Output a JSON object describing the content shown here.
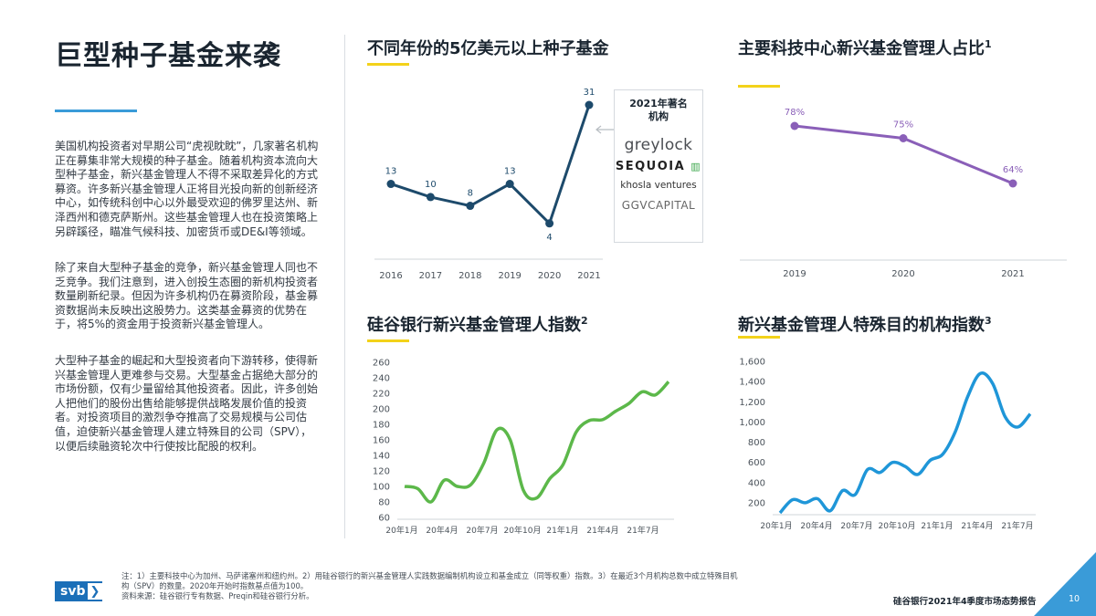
{
  "page": {
    "title": "巨型种子基金来袭",
    "paragraphs": [
      "美国机构投资者对早期公司“虎视眈眈”，几家著名机构正在募集非常大规模的种子基金。随着机构资本流向大型种子基金，新兴基金管理人不得不采取差异化的方式募资。许多新兴基金管理人正将目光投向新的创新经济中心，如传统科创中心以外最受欢迎的佛罗里达州、新泽西州和德克萨斯州。这些基金管理人也在投资策略上另辟蹊径，瞄准气候科技、加密货币或DE&I等领域。",
      "除了来自大型种子基金的竞争，新兴基金管理人同也不乏竞争。我们注意到，进入创投生态圈的新机构投资者数量刷新纪录。但因为许多机构仍在募资阶段，基金募资数据尚未反映出这股势力。这类基金募资的优势在于，将5%的资金用于投资新兴基金管理人。",
      "大型种子基金的崛起和大型投资者向下游转移，使得新兴基金管理人更难参与交易。大型基金占据绝大部分的市场份额，仅有少量留给其他投资者。因此，许多创始人把他们的股份出售给能够提供战略发展价值的投资者。对投资项目的激烈争夺推高了交易规模与公司估值，迫使新兴基金管理人建立特殊目的公司（SPV），以便后续融资轮次中行使按比配股的权利。"
    ],
    "footer": {
      "notes_line1": "注：1）主要科技中心为加州、马萨诸塞州和纽约州。2）用硅谷银行的新兴基金管理人实践数据编制机构设立和基金成立（同等权重）指数。3）在最近3个月机构总数中成立特殊目机",
      "notes_line2": "构（SPV）的数量。2020年开始时指数基点值为100。",
      "source": "资料来源：硅谷银行专有数据、Preqin和硅谷银行分析。",
      "report": "硅谷银行2021年4季度市场态势报告",
      "page_number": "10",
      "logo_text": "svb",
      "logo_chevron": "❯"
    },
    "colors": {
      "accent_blue": "#3a9bd8",
      "accent_yellow": "#f3d21a",
      "navy": "#1d4a6b",
      "purple": "#8a5fb8",
      "green": "#5cb84a",
      "sky": "#1f96d8"
    }
  },
  "legend": {
    "header_line1": "2021年著名",
    "header_line2": "机构",
    "firms": [
      "greylock",
      "SEQUOIA",
      "khosla ventures",
      "GGVCAPITAL"
    ]
  },
  "chart_data": [
    {
      "type": "line",
      "title": "不同年份的5亿美元以上种子基金",
      "categories": [
        "2016",
        "2017",
        "2018",
        "2019",
        "2020",
        "2021"
      ],
      "values": [
        13,
        10,
        8,
        13,
        4,
        31
      ]
    },
    {
      "type": "line",
      "title": "主要科技中心新兴基金管理人占比",
      "title_sup": "1",
      "categories": [
        "2019",
        "2020",
        "2021"
      ],
      "values": [
        78,
        75,
        64
      ],
      "value_labels": [
        "78%",
        "75%",
        "64%"
      ]
    },
    {
      "type": "line",
      "title": "硅谷银行新兴基金管理人指数",
      "title_sup": "2",
      "x_ticks": [
        "20年1月",
        "20年4月",
        "20年7月",
        "20年10月",
        "21年1月",
        "21年4月",
        "21年7月"
      ],
      "y_ticks": [
        "60",
        "80",
        "100",
        "120",
        "140",
        "160",
        "180",
        "200",
        "220",
        "240",
        "260"
      ],
      "ylim": [
        60,
        260
      ],
      "values": [
        100,
        97,
        80,
        108,
        100,
        102,
        130,
        173,
        160,
        95,
        85,
        110,
        128,
        170,
        185,
        186,
        197,
        207,
        222,
        218,
        235
      ]
    },
    {
      "type": "line",
      "title": "新兴基金管理人特殊目的机构指数",
      "title_sup": "3",
      "x_ticks": [
        "20年1月",
        "20年4月",
        "20年7月",
        "20年10月",
        "21年1月",
        "21年4月",
        "21年7月"
      ],
      "y_ticks": [
        "200",
        "400",
        "600",
        "800",
        "1,000",
        "1,200",
        "1,400",
        "1,600"
      ],
      "ylim": [
        100,
        1600
      ],
      "values": [
        100,
        230,
        200,
        240,
        120,
        320,
        280,
        530,
        500,
        600,
        560,
        480,
        620,
        680,
        900,
        1250,
        1480,
        1380,
        1050,
        950,
        1080
      ]
    }
  ]
}
